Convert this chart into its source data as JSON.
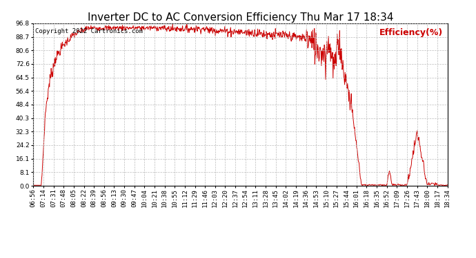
{
  "title": "Inverter DC to AC Conversion Efficiency Thu Mar 17 18:34",
  "ylabel": "Efficiency(%)",
  "copyright_text": "Copyright 2022 Cartronics.com",
  "background_color": "#ffffff",
  "line_color": "#cc0000",
  "grid_color": "#bbbbbb",
  "title_fontsize": 11,
  "tick_fontsize": 6.5,
  "legend_fontsize": 9,
  "copyright_fontsize": 6.5,
  "ylim": [
    0.0,
    96.8
  ],
  "yticks": [
    0.0,
    8.1,
    16.1,
    24.2,
    32.3,
    40.3,
    48.4,
    56.4,
    64.5,
    72.6,
    80.6,
    88.7,
    96.8
  ],
  "xtick_labels": [
    "06:56",
    "07:14",
    "07:31",
    "07:48",
    "08:05",
    "08:22",
    "08:39",
    "08:56",
    "09:13",
    "09:30",
    "09:47",
    "10:04",
    "10:21",
    "10:38",
    "10:55",
    "11:12",
    "11:29",
    "11:46",
    "12:03",
    "12:20",
    "12:37",
    "12:54",
    "13:11",
    "13:28",
    "13:45",
    "14:02",
    "14:19",
    "14:36",
    "14:53",
    "15:10",
    "15:27",
    "15:44",
    "16:01",
    "16:18",
    "16:35",
    "16:52",
    "17:09",
    "17:26",
    "17:43",
    "18:00",
    "18:17",
    "18:34"
  ]
}
